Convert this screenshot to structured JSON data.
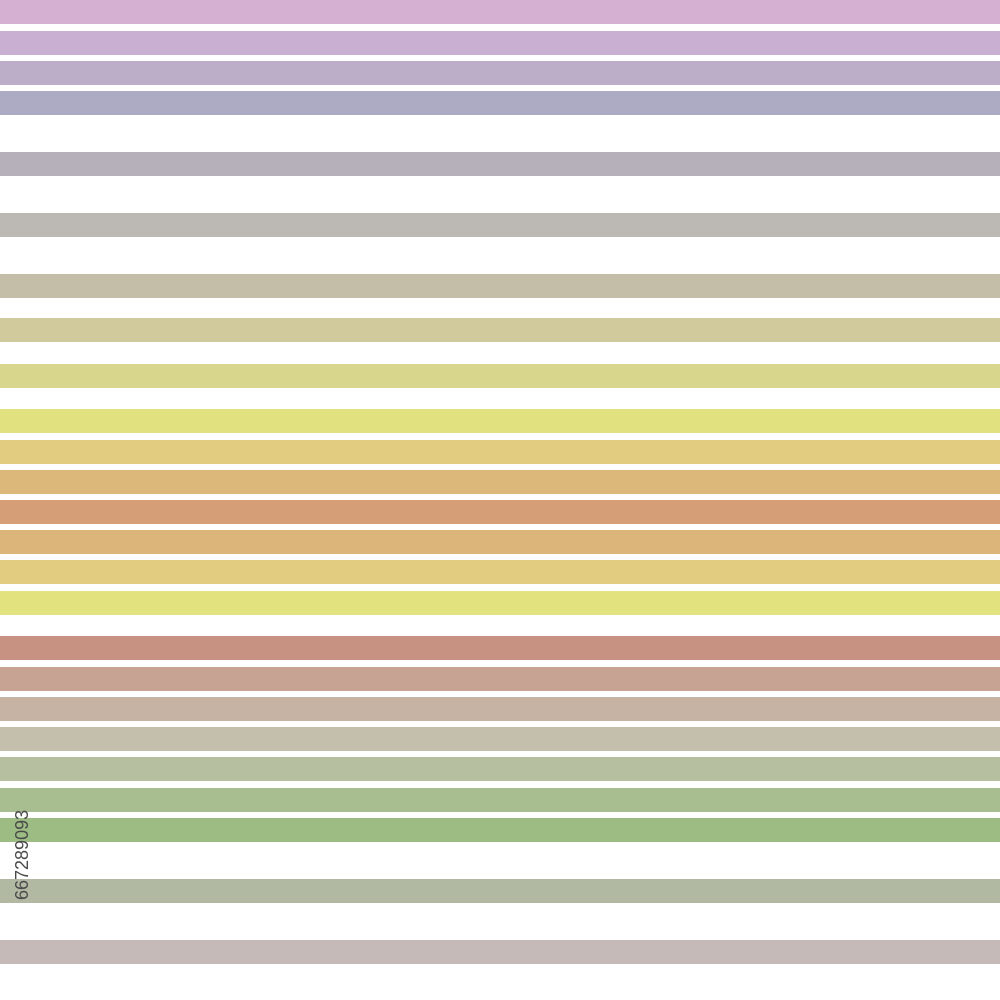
{
  "watermark": {
    "id": "667289093"
  }
}
